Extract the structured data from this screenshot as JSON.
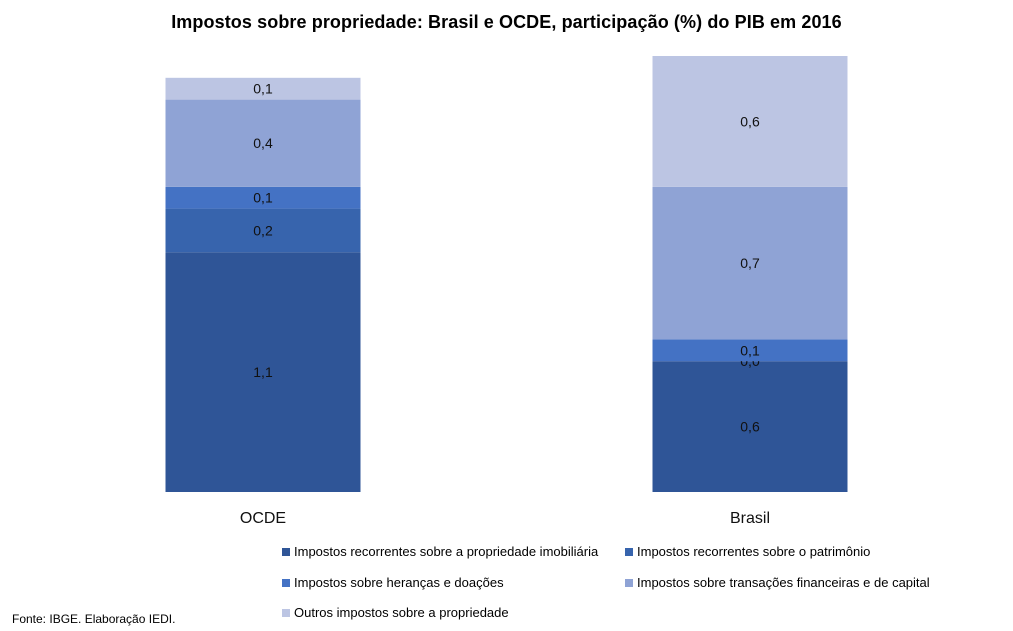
{
  "chart_data": {
    "type": "bar",
    "stacked": true,
    "title": "Impostos sobre propriedade: Brasil e OCDE, participação  (%) do PIB em 2016",
    "categories": [
      "OCDE",
      "Brasil"
    ],
    "series": [
      {
        "name": "Impostos recorrentes sobre a propriedade imobiliária",
        "color": "#2f5597",
        "values": [
          1.1,
          0.6
        ],
        "labels": [
          "1,1",
          "0,6"
        ]
      },
      {
        "name": "Impostos recorrentes sobre o patrimônio",
        "color": "#3764ad",
        "values": [
          0.2,
          0.0
        ],
        "labels": [
          "0,2",
          "0,0"
        ]
      },
      {
        "name": "Impostos sobre heranças e doações",
        "color": "#4472c4",
        "values": [
          0.1,
          0.1
        ],
        "labels": [
          "0,1",
          "0,1"
        ]
      },
      {
        "name": "Impostos sobre transações financeiras e de capital",
        "color": "#8fa3d5",
        "values": [
          0.4,
          0.7
        ],
        "labels": [
          "0,4",
          "0,7"
        ]
      },
      {
        "name": "Outros impostos sobre a propriedade",
        "color": "#bcc5e3",
        "values": [
          0.1,
          0.6
        ],
        "labels": [
          "0,1",
          "0,6"
        ]
      }
    ],
    "grid": false,
    "legend_position": "bottom"
  },
  "source_note": "Fonte: IBGE. Elaboração IEDI."
}
